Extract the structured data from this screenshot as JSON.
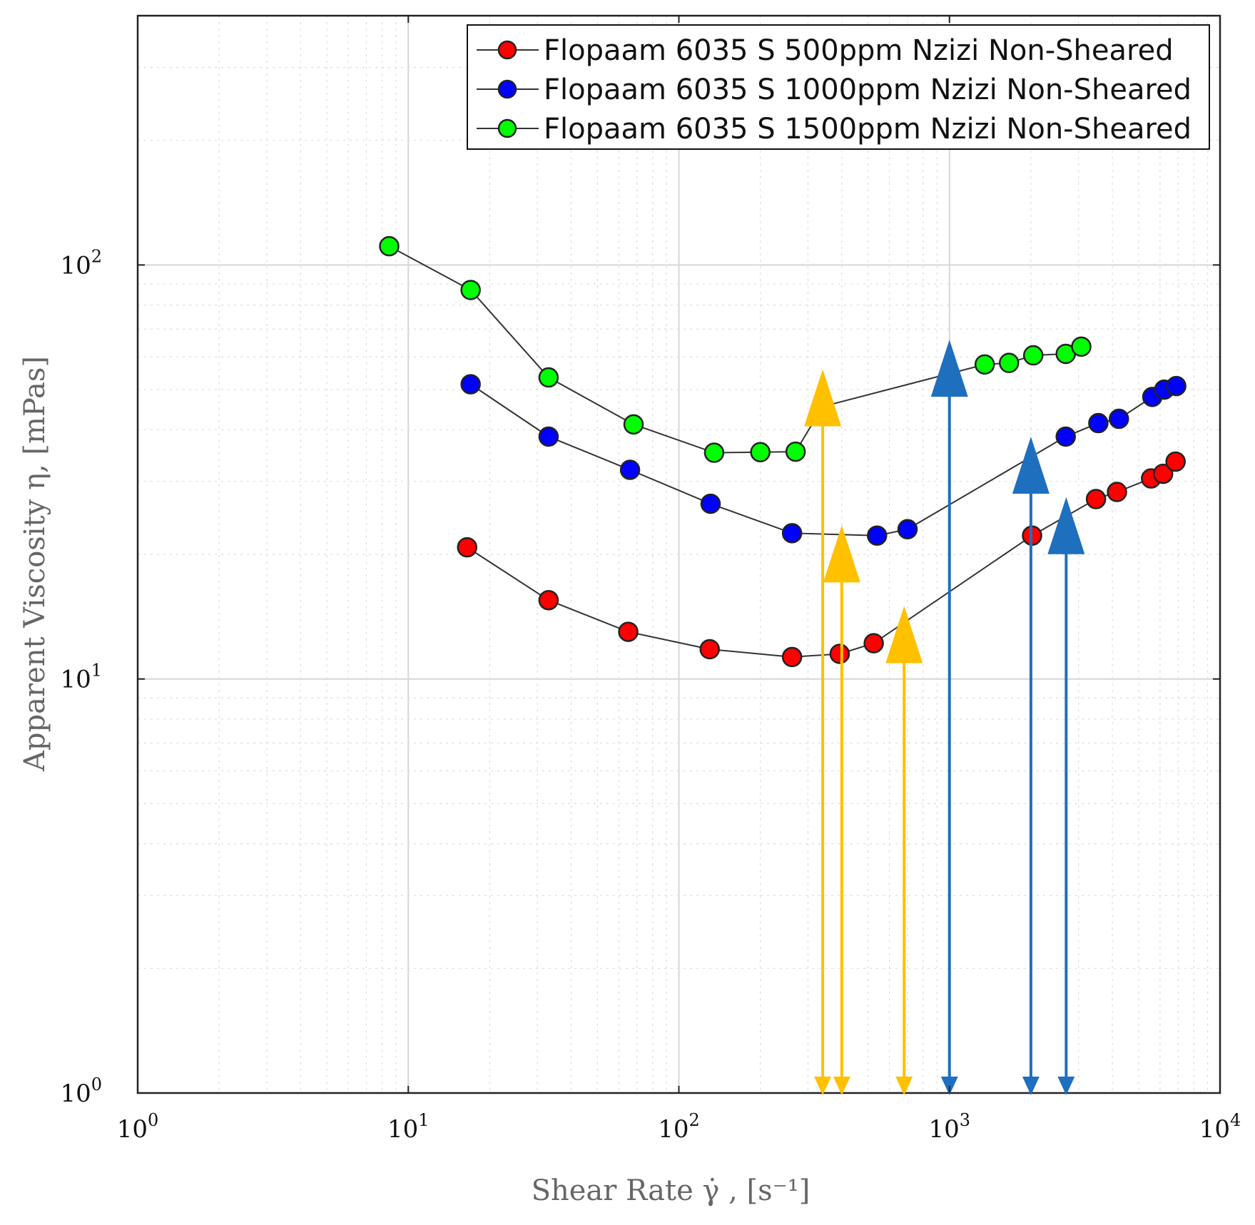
{
  "chart_data": {
    "type": "line",
    "x_scale": "log",
    "y_scale": "log",
    "xlim": [
      1,
      10000
    ],
    "ylim": [
      1,
      400
    ],
    "grid": true,
    "minor_grid": true,
    "legend_position": "top-right",
    "xlabel": "Shear Rate γ̇ , [s⁻¹]",
    "ylabel": "Apparent Viscosity η, [mPas]",
    "x_ticks": [
      {
        "value": 1,
        "base": "10",
        "exp": "0"
      },
      {
        "value": 10,
        "base": "10",
        "exp": "1"
      },
      {
        "value": 100,
        "base": "10",
        "exp": "2"
      },
      {
        "value": 1000,
        "base": "10",
        "exp": "3"
      },
      {
        "value": 10000,
        "base": "10",
        "exp": "4"
      }
    ],
    "y_ticks": [
      {
        "value": 1,
        "base": "10",
        "exp": "0"
      },
      {
        "value": 10,
        "base": "10",
        "exp": "1"
      },
      {
        "value": 100,
        "base": "10",
        "exp": "2"
      }
    ],
    "series": [
      {
        "name": "Flopaam 6035 S 500ppm Nzizi Non-Sheared",
        "color": "#ff0000",
        "x": [
          16.5,
          33,
          65,
          130,
          262,
          393,
          525,
          2020,
          3480,
          4160,
          5560,
          6160,
          6850
        ],
        "y": [
          20.8,
          15.5,
          13,
          11.8,
          11.3,
          11.5,
          12.2,
          22.2,
          27.2,
          28.3,
          30.5,
          31.3,
          33.5
        ]
      },
      {
        "name": "Flopaam 6035 S 1000ppm Nzizi Non-Sheared",
        "color": "#0000ff",
        "x": [
          17,
          33,
          66,
          131,
          262,
          540,
          700,
          2690,
          3550,
          4230,
          5620,
          6220,
          6890
        ],
        "y": [
          51.5,
          38.5,
          32,
          26.5,
          22.5,
          22.2,
          23,
          38.5,
          41.5,
          42.5,
          48,
          50,
          51
        ]
      },
      {
        "name": "Flopaam 6035 S 1500ppm Nzizi Non-Sheared",
        "color": "#00ff00",
        "x": [
          8.5,
          17,
          33,
          68,
          135,
          200,
          270,
          340,
          1350,
          1660,
          2040,
          2690,
          3070
        ],
        "y": [
          111,
          87,
          53.5,
          41.2,
          35.2,
          35.3,
          35.4,
          45.5,
          57.5,
          58,
          60.5,
          61,
          63.5
        ]
      }
    ],
    "annotations": [
      {
        "kind": "double-arrow",
        "color": "#ffc000",
        "x": 340,
        "y_top": 56
      },
      {
        "kind": "double-arrow",
        "color": "#ffc000",
        "x": 400,
        "y_top": 23.5
      },
      {
        "kind": "double-arrow",
        "color": "#ffc000",
        "x": 680,
        "y_top": 15
      },
      {
        "kind": "double-arrow",
        "color": "#1f6fbf",
        "x": 1000,
        "y_top": 66
      },
      {
        "kind": "double-arrow",
        "color": "#1f6fbf",
        "x": 2000,
        "y_top": 38.5
      },
      {
        "kind": "double-arrow",
        "color": "#1f6fbf",
        "x": 2700,
        "y_top": 27.5
      }
    ]
  }
}
